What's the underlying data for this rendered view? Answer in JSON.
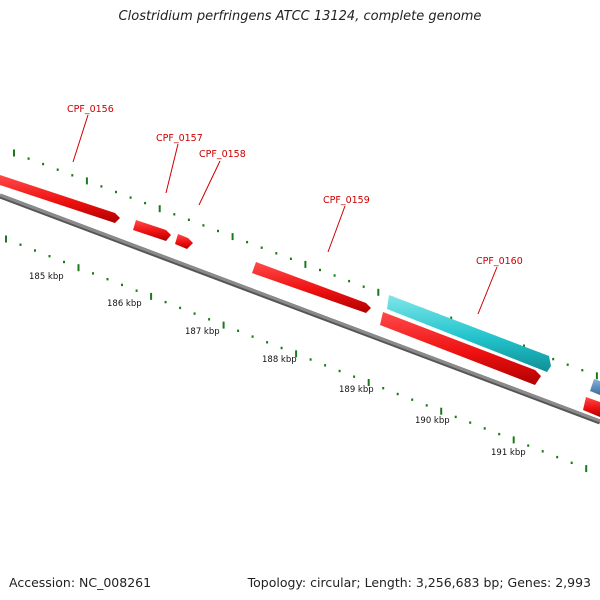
{
  "title": "Clostridium perfringens ATCC 13124, complete genome",
  "footer": {
    "accession": "Accession: NC_008261",
    "summary": "Topology: circular; Length: 3,256,683 bp; Genes: 2,993"
  },
  "colors": {
    "forward_gene": "#ee1111",
    "cyan_feature": "#22c4cc",
    "blue_feature": "#4f86b8",
    "backbone": "#777777",
    "tick": "#1a7a1a",
    "label": "#cc0000"
  },
  "scale_ticks": [
    "185 kbp",
    "186 kbp",
    "187 kbp",
    "188 kbp",
    "189 kbp",
    "190 kbp",
    "191 kbp"
  ],
  "gene_labels": [
    "CPF_0156",
    "CPF_0157",
    "CPF_0158",
    "CPF_0159",
    "CPF_0160"
  ]
}
